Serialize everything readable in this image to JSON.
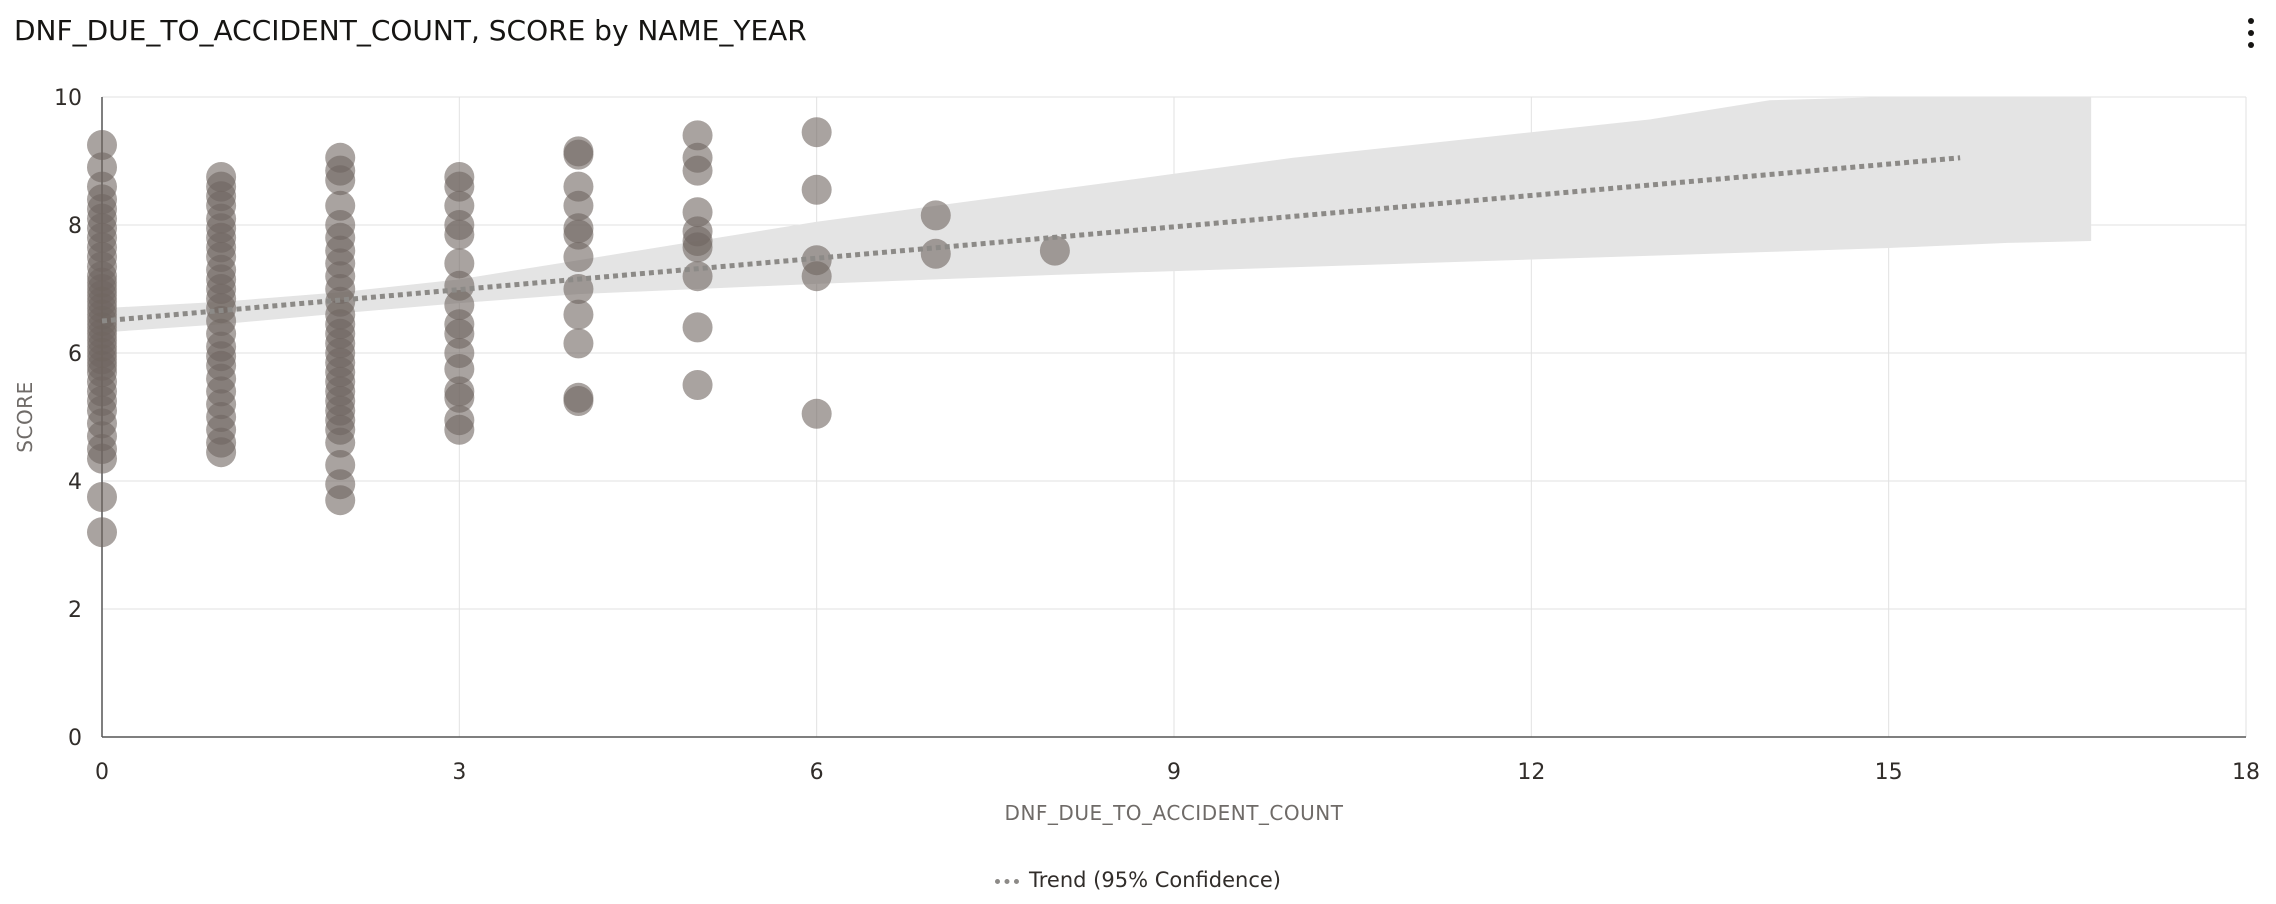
{
  "header": {
    "title": "DNF_DUE_TO_ACCIDENT_COUNT, SCORE by NAME_YEAR",
    "menu_icon": "more-vertical-icon"
  },
  "legend": {
    "trend_label": "Trend (95% Confidence)"
  },
  "colors": {
    "point": "#6f6560",
    "trend": "#8c8a87",
    "confidence_band": "#e4e4e4",
    "grid": "#e2e2e2",
    "axis": "#555555"
  },
  "chart_data": {
    "type": "scatter",
    "title": "DNF_DUE_TO_ACCIDENT_COUNT, SCORE by NAME_YEAR",
    "xlabel": "DNF_DUE_TO_ACCIDENT_COUNT",
    "ylabel": "SCORE",
    "xlim": [
      0,
      18
    ],
    "ylim": [
      0,
      10
    ],
    "xticks": [
      0,
      3,
      6,
      9,
      12,
      15,
      18
    ],
    "yticks": [
      0,
      2,
      4,
      6,
      8,
      10
    ],
    "grid": true,
    "legend_position": "bottom-center",
    "points": [
      [
        0,
        9.25
      ],
      [
        0,
        8.9
      ],
      [
        0,
        8.6
      ],
      [
        0,
        8.4
      ],
      [
        0,
        8.25
      ],
      [
        0,
        8.1
      ],
      [
        0,
        7.95
      ],
      [
        0,
        7.8
      ],
      [
        0,
        7.65
      ],
      [
        0,
        7.5
      ],
      [
        0,
        7.35
      ],
      [
        0,
        7.2
      ],
      [
        0,
        7.1
      ],
      [
        0,
        7.0
      ],
      [
        0,
        6.9
      ],
      [
        0,
        6.8
      ],
      [
        0,
        6.7
      ],
      [
        0,
        6.6
      ],
      [
        0,
        6.5
      ],
      [
        0,
        6.4
      ],
      [
        0,
        6.3
      ],
      [
        0,
        6.2
      ],
      [
        0,
        6.1
      ],
      [
        0,
        6.0
      ],
      [
        0,
        5.9
      ],
      [
        0,
        5.8
      ],
      [
        0,
        5.7
      ],
      [
        0,
        5.55
      ],
      [
        0,
        5.4
      ],
      [
        0,
        5.25
      ],
      [
        0,
        5.1
      ],
      [
        0,
        4.9
      ],
      [
        0,
        4.7
      ],
      [
        0,
        4.5
      ],
      [
        0,
        4.35
      ],
      [
        0,
        3.75
      ],
      [
        0,
        3.2
      ],
      [
        1,
        8.75
      ],
      [
        1,
        8.6
      ],
      [
        1,
        8.45
      ],
      [
        1,
        8.3
      ],
      [
        1,
        8.1
      ],
      [
        1,
        7.95
      ],
      [
        1,
        7.8
      ],
      [
        1,
        7.65
      ],
      [
        1,
        7.5
      ],
      [
        1,
        7.3
      ],
      [
        1,
        7.15
      ],
      [
        1,
        7.0
      ],
      [
        1,
        6.85
      ],
      [
        1,
        6.7
      ],
      [
        1,
        6.5
      ],
      [
        1,
        6.3
      ],
      [
        1,
        6.1
      ],
      [
        1,
        5.95
      ],
      [
        1,
        5.8
      ],
      [
        1,
        5.6
      ],
      [
        1,
        5.4
      ],
      [
        1,
        5.2
      ],
      [
        1,
        5.0
      ],
      [
        1,
        4.8
      ],
      [
        1,
        4.6
      ],
      [
        1,
        4.45
      ],
      [
        2,
        9.05
      ],
      [
        2,
        8.85
      ],
      [
        2,
        8.7
      ],
      [
        2,
        8.3
      ],
      [
        2,
        8.0
      ],
      [
        2,
        7.8
      ],
      [
        2,
        7.6
      ],
      [
        2,
        7.4
      ],
      [
        2,
        7.2
      ],
      [
        2,
        7.0
      ],
      [
        2,
        6.8
      ],
      [
        2,
        6.6
      ],
      [
        2,
        6.45
      ],
      [
        2,
        6.3
      ],
      [
        2,
        6.15
      ],
      [
        2,
        6.0
      ],
      [
        2,
        5.85
      ],
      [
        2,
        5.7
      ],
      [
        2,
        5.55
      ],
      [
        2,
        5.4
      ],
      [
        2,
        5.25
      ],
      [
        2,
        5.1
      ],
      [
        2,
        4.95
      ],
      [
        2,
        4.8
      ],
      [
        2,
        4.6
      ],
      [
        2,
        4.25
      ],
      [
        2,
        3.95
      ],
      [
        2,
        3.7
      ],
      [
        3,
        8.75
      ],
      [
        3,
        8.6
      ],
      [
        3,
        8.3
      ],
      [
        3,
        8.0
      ],
      [
        3,
        7.85
      ],
      [
        3,
        7.4
      ],
      [
        3,
        7.05
      ],
      [
        3,
        6.75
      ],
      [
        3,
        6.45
      ],
      [
        3,
        6.3
      ],
      [
        3,
        6.0
      ],
      [
        3,
        5.75
      ],
      [
        3,
        5.4
      ],
      [
        3,
        5.3
      ],
      [
        3,
        4.95
      ],
      [
        3,
        4.8
      ],
      [
        4,
        9.15
      ],
      [
        4,
        9.1
      ],
      [
        4,
        8.6
      ],
      [
        4,
        8.3
      ],
      [
        4,
        7.95
      ],
      [
        4,
        7.85
      ],
      [
        4,
        7.5
      ],
      [
        4,
        7.0
      ],
      [
        4,
        6.6
      ],
      [
        4,
        6.15
      ],
      [
        4,
        5.3
      ],
      [
        4,
        5.25
      ],
      [
        5,
        9.4
      ],
      [
        5,
        9.05
      ],
      [
        5,
        8.85
      ],
      [
        5,
        8.2
      ],
      [
        5,
        7.9
      ],
      [
        5,
        7.75
      ],
      [
        5,
        7.65
      ],
      [
        5,
        7.2
      ],
      [
        5,
        6.4
      ],
      [
        5,
        5.5
      ],
      [
        6,
        9.45
      ],
      [
        6,
        8.55
      ],
      [
        6,
        7.45
      ],
      [
        6,
        7.2
      ],
      [
        6,
        5.05
      ],
      [
        7,
        8.15
      ],
      [
        7,
        7.55
      ],
      [
        8,
        7.6
      ]
    ],
    "trend": {
      "name": "Trend (95% Confidence)",
      "x": [
        0,
        15.6
      ],
      "y": [
        6.5,
        9.05
      ]
    },
    "confidence_band": {
      "x": [
        0,
        1,
        2,
        3,
        4,
        5,
        6,
        7,
        8,
        9,
        10,
        11,
        12,
        13,
        14,
        15,
        16,
        16.7
      ],
      "upper": [
        6.7,
        6.8,
        6.95,
        7.15,
        7.45,
        7.75,
        8.05,
        8.3,
        8.55,
        8.8,
        9.05,
        9.25,
        9.45,
        9.65,
        9.95,
        10,
        10,
        10
      ],
      "lower": [
        6.32,
        6.45,
        6.62,
        6.78,
        6.92,
        7.0,
        7.08,
        7.15,
        7.22,
        7.28,
        7.34,
        7.4,
        7.46,
        7.52,
        7.58,
        7.64,
        7.72,
        7.75
      ]
    }
  }
}
